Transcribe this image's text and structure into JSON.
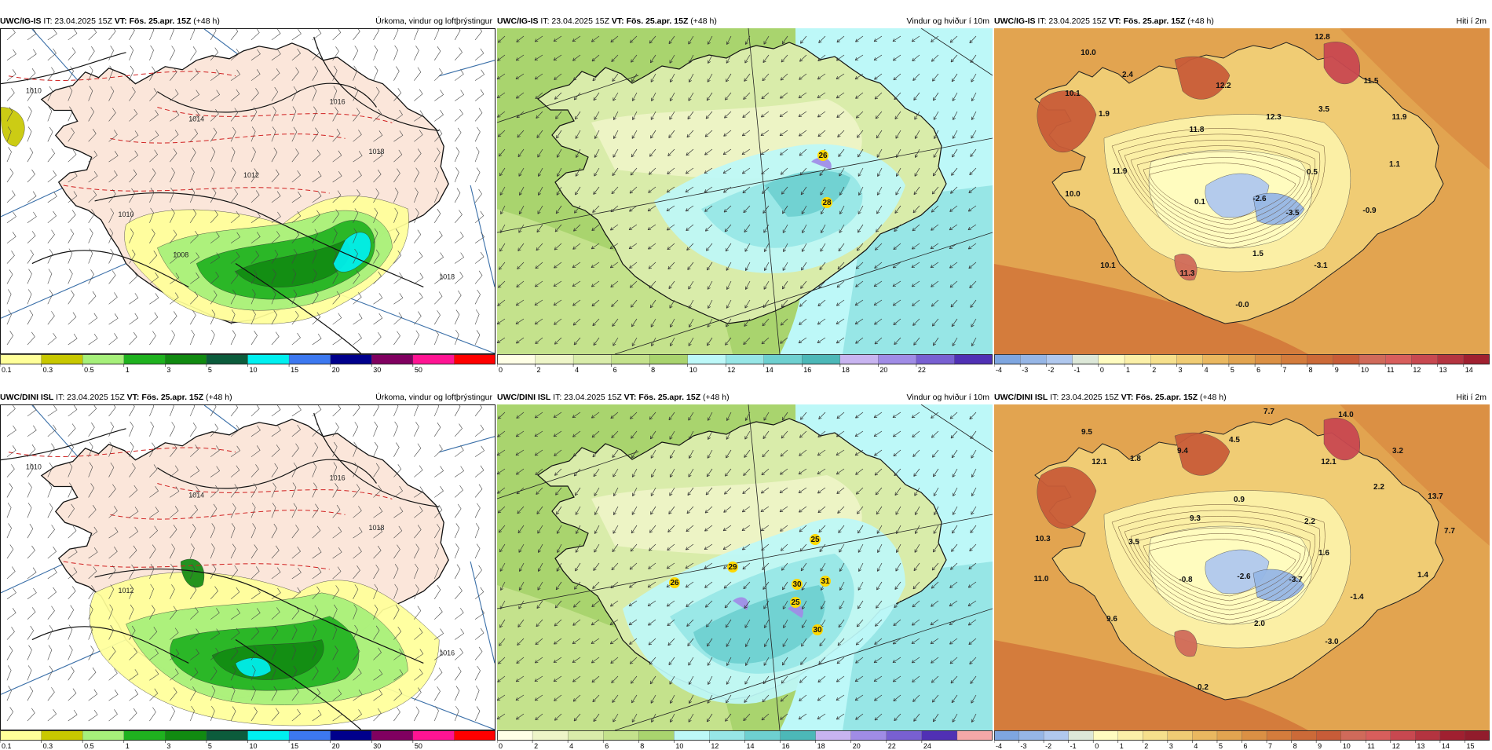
{
  "panels": [
    {
      "model": "UWC/IG-IS",
      "it_text": " IT: 23.04.2025 15Z ",
      "vt_label": "VT: Fös. 25.apr. 15Z",
      "lead": " (+48 h)",
      "title": "Úrkoma, vindur og loftþrýstingur",
      "type": "precip",
      "ticks": [
        "0.1",
        "0.3",
        "0.5",
        "1",
        "3",
        "5",
        "10",
        "15",
        "20",
        "30",
        "50"
      ],
      "colors": [
        "#ffff99",
        "#c8c800",
        "#a6f07a",
        "#1fb21f",
        "#118a11",
        "#0c5c3c",
        "#00f0f0",
        "#3c78f0",
        "#00008c",
        "#800060",
        "#ff1493",
        "#ff0000"
      ],
      "isobar_labels": [
        "1010",
        "1014",
        "1016",
        "1018",
        "1010",
        "1018",
        "1012",
        "1008"
      ],
      "map_labels": []
    },
    {
      "model": "UWC/IG-IS",
      "it_text": " IT: 23.04.2025 15Z ",
      "vt_label": "VT: Fös. 25.apr. 15Z",
      "lead": " (+48 h)",
      "title": "Vindur og hviður í 10m",
      "type": "wind",
      "ticks": [
        "0",
        "2",
        "4",
        "6",
        "8",
        "10",
        "12",
        "14",
        "16",
        "18",
        "20",
        "22"
      ],
      "colors": [
        "#ffffe6",
        "#eef5c8",
        "#d9ecaa",
        "#c4e28c",
        "#a9d46e",
        "#bdf8f8",
        "#97e6e6",
        "#6ed0d0",
        "#4cb8b8",
        "#c8b4f0",
        "#a08ce6",
        "#7860d2",
        "#5030b4"
      ],
      "map_labels": [
        "26",
        "28"
      ]
    },
    {
      "model": "UWC/IG-IS",
      "it_text": " IT: 23.04.2025 15Z ",
      "vt_label": "VT: Fös. 25.apr. 15Z",
      "lead": " (+48 h)",
      "title": "Hiti í 2m",
      "type": "temp",
      "ticks": [
        "-4",
        "-3",
        "-2",
        "-1",
        "0",
        "1",
        "2",
        "3",
        "4",
        "5",
        "6",
        "7",
        "8",
        "9",
        "10",
        "11",
        "12",
        "13",
        "14"
      ],
      "colors": [
        "#7ea6e0",
        "#96b6e6",
        "#b0c8ee",
        "#dde8d8",
        "#fffcc0",
        "#fbf0a8",
        "#f6e08c",
        "#f0cc74",
        "#eab860",
        "#e2a450",
        "#db9044",
        "#d47c3c",
        "#cc6a38",
        "#c85c38",
        "#d06a5a",
        "#d85e5c",
        "#c84850",
        "#b43440",
        "#a02030"
      ],
      "map_labels": [
        "12.8",
        "10.0",
        "2.4",
        "10.1",
        "12.2",
        "11.5",
        "1.9",
        "12.3",
        "3.5",
        "11.9",
        "11.8",
        "1.1",
        "11.9",
        "0.5",
        "10.0",
        "0.1",
        "-2.6",
        "-3.5",
        "-0.9",
        "1.5",
        "10.1",
        "11.3",
        "-3.1",
        "-0.0"
      ]
    },
    {
      "model": "UWC/DINI ISL",
      "it_text": " IT: 23.04.2025 15Z ",
      "vt_label": "VT: Fös. 25.apr. 15Z",
      "lead": " (+48 h)",
      "title": "Úrkoma, vindur og loftþrýstingur",
      "type": "precip",
      "ticks": [
        "0.1",
        "0.3",
        "0.5",
        "1",
        "3",
        "5",
        "10",
        "15",
        "20",
        "30",
        "50"
      ],
      "colors": [
        "#ffff99",
        "#c8c800",
        "#a6f07a",
        "#1fb21f",
        "#118a11",
        "#0c5c3c",
        "#00f0f0",
        "#3c78f0",
        "#00008c",
        "#800060",
        "#ff1493",
        "#ff0000"
      ],
      "isobar_labels": [
        "1010",
        "1014",
        "1016",
        "1018",
        "1012",
        "1016"
      ],
      "map_labels": []
    },
    {
      "model": "UWC/DINI ISL",
      "it_text": " IT: 23.04.2025 15Z ",
      "vt_label": "VT: Fös. 25.apr. 15Z",
      "lead": " (+48 h)",
      "title": "Vindur og hviður í 10m",
      "type": "wind",
      "ticks": [
        "0",
        "2",
        "4",
        "6",
        "8",
        "10",
        "12",
        "14",
        "16",
        "18",
        "20",
        "22",
        "24"
      ],
      "colors": [
        "#ffffe6",
        "#eef5c8",
        "#d9ecaa",
        "#c4e28c",
        "#a9d46e",
        "#bdf8f8",
        "#97e6e6",
        "#6ed0d0",
        "#4cb8b8",
        "#c8b4f0",
        "#a08ce6",
        "#7860d2",
        "#5030b4",
        "#f4a8a8"
      ],
      "map_labels": [
        "25",
        "26",
        "29",
        "30",
        "31",
        "25",
        "30"
      ]
    },
    {
      "model": "UWC/DINI ISL",
      "it_text": " IT: 23.04.2025 15Z ",
      "vt_label": "VT: Fös. 25.apr. 15Z",
      "lead": " (+48 h)",
      "title": "Hiti í 2m",
      "type": "temp",
      "ticks": [
        "-4",
        "-3",
        "-2",
        "-1",
        "0",
        "1",
        "2",
        "3",
        "4",
        "5",
        "6",
        "7",
        "8",
        "9",
        "10",
        "11",
        "12",
        "13",
        "14",
        "15"
      ],
      "colors": [
        "#7ea6e0",
        "#96b6e6",
        "#b0c8ee",
        "#dde8d8",
        "#fffcc0",
        "#fbf0a8",
        "#f6e08c",
        "#f0cc74",
        "#eab860",
        "#e2a450",
        "#db9044",
        "#d47c3c",
        "#cc6a38",
        "#c85c38",
        "#d06a5a",
        "#d85e5c",
        "#c84850",
        "#b43440",
        "#a02030",
        "#921c2c"
      ],
      "map_labels": [
        "7.7",
        "14.0",
        "9.5",
        "4.5",
        "3.2",
        "12.1",
        "1.8",
        "9.4",
        "12.1",
        "2.2",
        "13.7",
        "0.9",
        "9.3",
        "2.2",
        "7.7",
        "10.3",
        "3.5",
        "1.6",
        "11.0",
        "-0.8",
        "-2.6",
        "-3.7",
        "1.4",
        "-1.4",
        "9.6",
        "2.0",
        "-3.0",
        "0.2"
      ]
    }
  ]
}
